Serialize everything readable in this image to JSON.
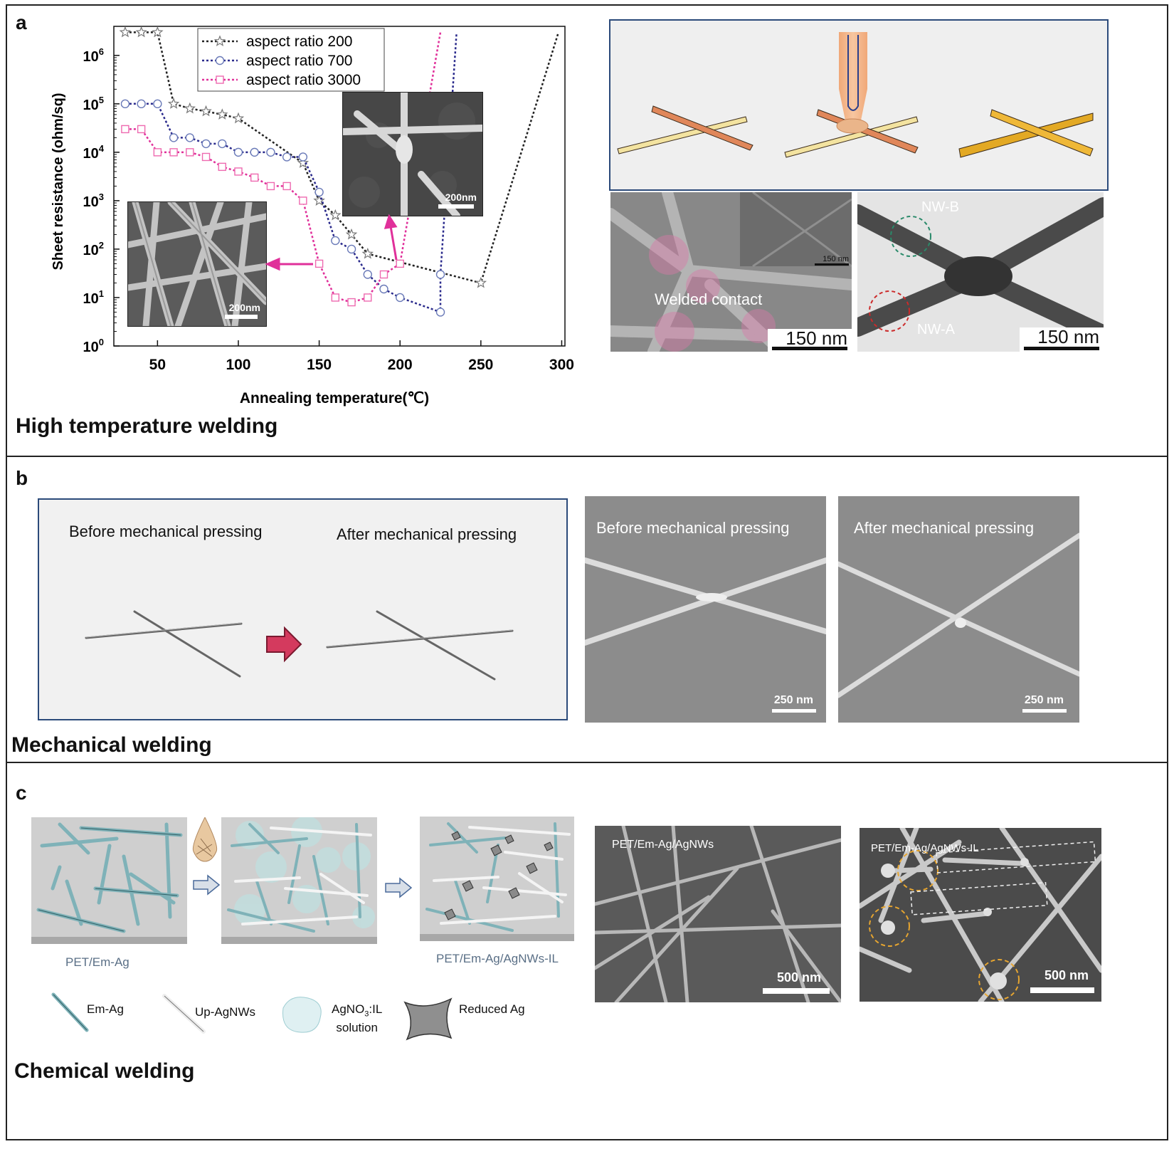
{
  "panel_a": {
    "letter": "a",
    "title": "High temperature welding",
    "inset_left_scale": "200nm",
    "inset_right_scale": "200nm",
    "schematic_colors": {
      "wire_light": "#f3e3a0",
      "wire_orange": "#e0875a",
      "wire_gold": "#e3a924",
      "tip": "#f2b68c"
    },
    "sem1": {
      "label": "Welded contact",
      "scale": "150 nm",
      "inset_scale": "150 nm"
    },
    "tem": {
      "label_a": "NW-A",
      "label_b": "NW-B",
      "scale": "150 nm"
    }
  },
  "chart_data": {
    "type": "line",
    "xlabel": "Annealing temperature(℃)",
    "ylabel": "Sheet resistance (ohm/sq)",
    "xlim": [
      23,
      302
    ],
    "ylim_log10": [
      0,
      6.6
    ],
    "x_ticks": [
      "50",
      "100",
      "150",
      "200",
      "250",
      "300"
    ],
    "y_tick_labels": [
      {
        "base": "10",
        "exp": "0"
      },
      {
        "base": "10",
        "exp": "1"
      },
      {
        "base": "10",
        "exp": "2"
      },
      {
        "base": "10",
        "exp": "3"
      },
      {
        "base": "10",
        "exp": "4"
      },
      {
        "base": "10",
        "exp": "5"
      },
      {
        "base": "10",
        "exp": "6"
      }
    ],
    "legend_position": "top-left",
    "series": [
      {
        "name": "aspect ratio 200",
        "color": "#222222",
        "marker": "star",
        "x": [
          30,
          40,
          50,
          60,
          70,
          80,
          90,
          100,
          140,
          150,
          160,
          170,
          180,
          250,
          298
        ],
        "y": [
          3000000,
          3000000,
          3000000,
          100000,
          80000,
          70000,
          60000,
          50000,
          6000,
          1000,
          500,
          200,
          80,
          20,
          3000000
        ]
      },
      {
        "name": "aspect ratio 700",
        "color": "#2a2a8c",
        "marker": "circle",
        "x": [
          30,
          40,
          50,
          60,
          70,
          80,
          90,
          100,
          110,
          120,
          130,
          140,
          150,
          160,
          170,
          180,
          190,
          200,
          225,
          225,
          235
        ],
        "y": [
          100000,
          100000,
          100000,
          20000,
          20000,
          15000,
          15000,
          10000,
          10000,
          10000,
          8000,
          8000,
          1500,
          150,
          100,
          30,
          15,
          10,
          5,
          30,
          3000000
        ]
      },
      {
        "name": "aspect ratio 3000",
        "color": "#e0309a",
        "marker": "square",
        "x": [
          30,
          40,
          50,
          60,
          70,
          80,
          90,
          100,
          110,
          120,
          130,
          140,
          150,
          160,
          170,
          180,
          190,
          200,
          225
        ],
        "y": [
          30000,
          30000,
          10000,
          10000,
          10000,
          8000,
          5000,
          4000,
          3000,
          2000,
          2000,
          1000,
          50,
          10,
          8,
          10,
          30,
          50,
          3000000
        ]
      }
    ]
  },
  "panel_b": {
    "letter": "b",
    "title": "Mechanical welding",
    "before_label": "Before mechanical pressing",
    "after_label": "After  mechanical pressing",
    "sem_before_label": "Before mechanical pressing",
    "sem_after_label": "After mechanical pressing",
    "scale": "250 nm"
  },
  "panel_c": {
    "letter": "c",
    "title": "Chemical welding",
    "cap1": "PET/Em-Ag",
    "cap3": "PET/Em-Ag/AgNWs-IL",
    "sem1_label": "PET/Em-Ag/AgNWs",
    "sem2_label": "PET/Em-Ag/AgNWs-IL",
    "scale": "500 nm",
    "legend": {
      "em": "Em-Ag",
      "up": "Up-AgNWs",
      "sol_line1": "AgNO",
      "sol_sub": "3",
      "sol_line1_rest": ":IL",
      "sol_line2": "solution",
      "reduced": "Reduced Ag"
    }
  }
}
